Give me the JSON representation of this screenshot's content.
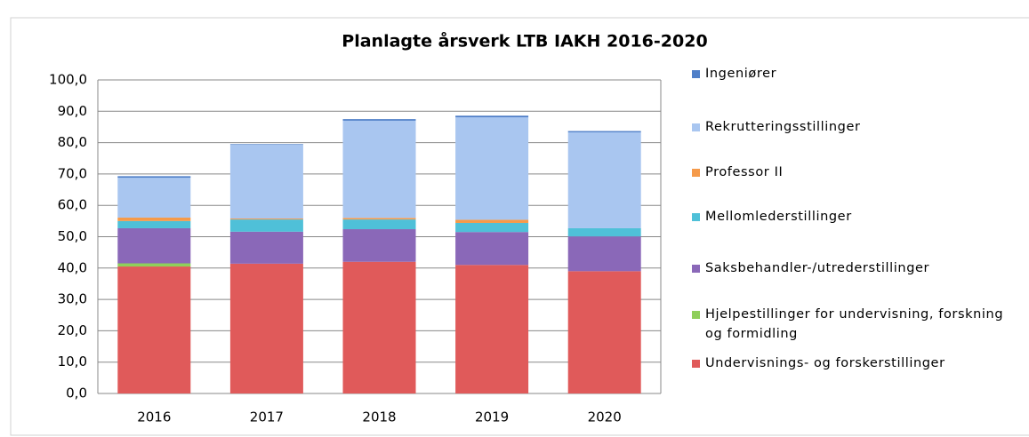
{
  "chart_data": {
    "type": "stacked_bar",
    "title": "Planlagte årsverk LTB IAKH 2016-2020",
    "categories": [
      "2016",
      "2017",
      "2018",
      "2019",
      "2020"
    ],
    "series": [
      {
        "name": "Undervisnings- og forskerstillinger",
        "color": "#e05a5a",
        "values": [
          40.5,
          41.4,
          42.0,
          41.0,
          39.0
        ]
      },
      {
        "name": "Hjelpestillinger for undervisning, forskning og formidling",
        "color": "#8fcf5a",
        "values": [
          1.0,
          0,
          0,
          0,
          0
        ]
      },
      {
        "name": "Saksbehandler-/utrederstillinger",
        "color": "#8a68b8",
        "values": [
          11.2,
          10.2,
          10.4,
          10.5,
          11.1
        ]
      },
      {
        "name": "Mellomlederstillinger",
        "color": "#4fc0d8",
        "values": [
          2.3,
          3.9,
          3.1,
          2.9,
          2.6
        ]
      },
      {
        "name": "Professor II",
        "color": "#f59a4a",
        "values": [
          1.1,
          0.3,
          0.5,
          1.0,
          0
        ]
      },
      {
        "name": "Rekrutteringsstillinger",
        "color": "#a9c6f0",
        "values": [
          12.7,
          23.5,
          31.0,
          32.7,
          30.6
        ]
      },
      {
        "name": "Ingeniører",
        "color": "#4f7fc8",
        "values": [
          0.5,
          0.2,
          0.5,
          0.5,
          0.4
        ]
      }
    ],
    "ylim": [
      0,
      100
    ],
    "yticks": [
      {
        "value": 0,
        "label": "0,0"
      },
      {
        "value": 10,
        "label": "10,0"
      },
      {
        "value": 20,
        "label": "20,0"
      },
      {
        "value": 30,
        "label": "30,0"
      },
      {
        "value": 40,
        "label": "40,0"
      },
      {
        "value": 50,
        "label": "50,0"
      },
      {
        "value": 60,
        "label": "60,0"
      },
      {
        "value": 70,
        "label": "70,0"
      },
      {
        "value": 80,
        "label": "80,0"
      },
      {
        "value": 90,
        "label": "90,0"
      },
      {
        "value": 100,
        "label": "100,0"
      }
    ],
    "grid": true,
    "legend": "right"
  }
}
